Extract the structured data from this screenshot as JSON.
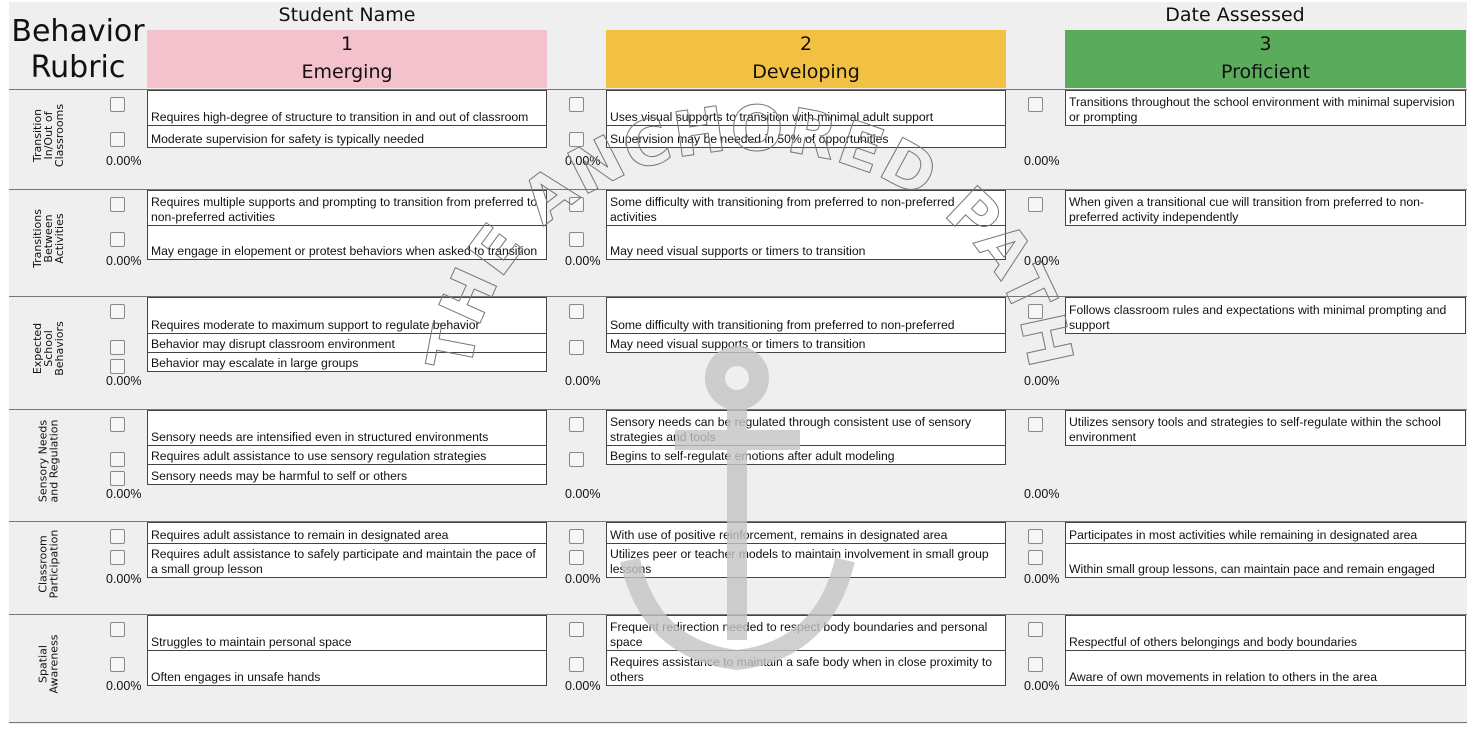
{
  "title_line1": "Behavior",
  "title_line2": "Rubric",
  "student_name_label": "Student Name",
  "date_assessed_label": "Date Assessed",
  "watermark": "THE ANCHORED PATH",
  "levels": [
    {
      "number": "1",
      "name": "Emerging",
      "color": "#f4c2cc"
    },
    {
      "number": "2",
      "name": "Developing",
      "color": "#f2c043"
    },
    {
      "number": "3",
      "name": "Proficient",
      "color": "#5aab5b"
    }
  ],
  "sections": [
    {
      "label": "Transition\nIn/Out of\nClassrooms",
      "columns": [
        {
          "items": [
            "Requires high-degree of structure to transition in and out of classroom",
            "Moderate supervision for safety is typically needed"
          ],
          "percent": "0.00%"
        },
        {
          "items": [
            "Uses visual supports to transition with minimal adult support",
            "Supervision may be needed in 50% of opportunities"
          ],
          "percent": "0.00%"
        },
        {
          "items": [
            "Transitions throughout the school environment with minimal supervision or prompting"
          ],
          "percent": "0.00%"
        }
      ]
    },
    {
      "label": "Transitions\nBetween\nActivities",
      "columns": [
        {
          "items": [
            "Requires multiple supports and prompting to transition from preferred to non-preferred activities",
            "May engage in elopement or protest behaviors when asked to transition"
          ],
          "percent": "0.00%"
        },
        {
          "items": [
            "Some difficulty with transitioning from preferred to non-preferred activities",
            "May need visual supports or timers to transition"
          ],
          "percent": "0.00%"
        },
        {
          "items": [
            "When given a transitional cue will transition from preferred to non-preferred activity independently"
          ],
          "percent": "0.00%"
        }
      ]
    },
    {
      "label": "Expected\nSchool\nBehaviors",
      "columns": [
        {
          "items": [
            "Requires moderate to maximum support to regulate behavior",
            "Behavior may disrupt classroom environment",
            "Behavior may escalate in large groups"
          ],
          "percent": "0.00%"
        },
        {
          "items": [
            "Some difficulty with transitioning from preferred to non-preferred",
            "May need visual supports or timers to transition"
          ],
          "percent": "0.00%"
        },
        {
          "items": [
            "Follows classroom rules and expectations with minimal prompting and support"
          ],
          "percent": "0.00%"
        }
      ]
    },
    {
      "label": "Sensory Needs\nand Regulation",
      "columns": [
        {
          "items": [
            "Sensory needs are intensified even in structured environments",
            "Requires adult assistance to use sensory regulation strategies",
            "Sensory needs may be harmful to self or others"
          ],
          "percent": "0.00%"
        },
        {
          "items": [
            "Sensory needs can be regulated through consistent use of sensory strategies and tools",
            "Begins to self-regulate emotions after adult modeling"
          ],
          "percent": "0.00%"
        },
        {
          "items": [
            "Utilizes sensory tools and strategies to self-regulate within the school environment"
          ],
          "percent": "0.00%"
        }
      ]
    },
    {
      "label": "Classroom\nParticipation",
      "columns": [
        {
          "items": [
            "Requires adult assistance to remain in designated area",
            "Requires adult assistance to safely participate and maintain the pace of a small group lesson"
          ],
          "percent": "0.00%"
        },
        {
          "items": [
            "With use of positive reinforcement, remains in designated area",
            "Utilizes peer or teacher models to maintain involvement in small group lessons"
          ],
          "percent": "0.00%"
        },
        {
          "items": [
            "Participates in most activities while remaining in designated area",
            "Within small group lessons, can maintain pace and remain engaged"
          ],
          "percent": "0.00%"
        }
      ]
    },
    {
      "label": "Spatial\nAwareness",
      "columns": [
        {
          "items": [
            "Struggles to maintain personal space",
            "Often engages in unsafe hands"
          ],
          "percent": "0.00%"
        },
        {
          "items": [
            "Frequent redirection needed to respect body boundaries and personal space",
            "Requires assistance to maintain a safe body when in close proximity to others"
          ],
          "percent": "0.00%"
        },
        {
          "items": [
            "Respectful of others belongings and body boundaries",
            "Aware of own movements in relation to others in the area"
          ],
          "percent": "0.00%"
        }
      ]
    }
  ]
}
